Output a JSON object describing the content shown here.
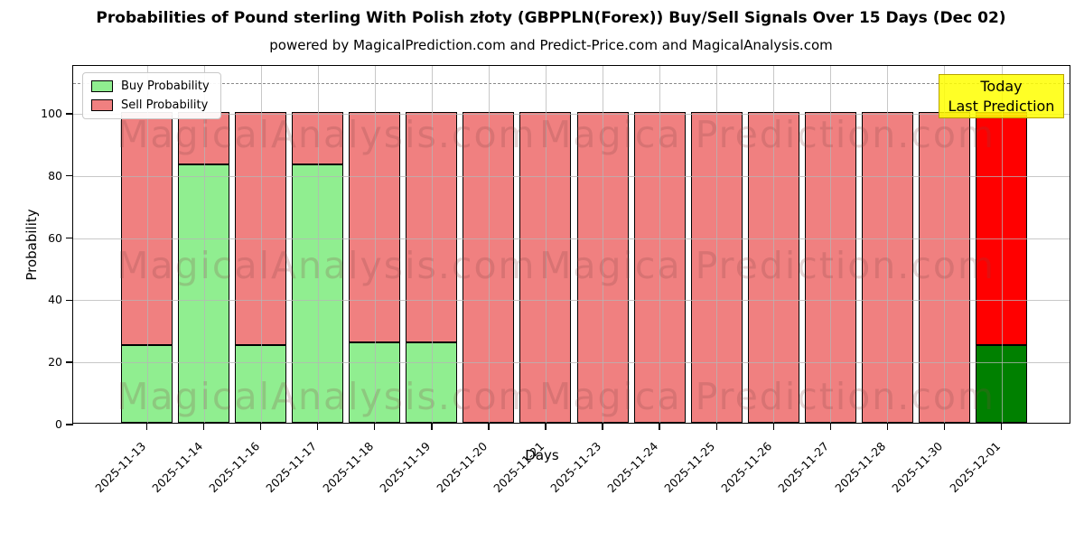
{
  "header": {
    "title": "Probabilities of Pound sterling With Polish złoty (GBPPLN(Forex)) Buy/Sell Signals Over 15 Days (Dec 02)",
    "subtitle": "powered by MagicalPrediction.com and Predict-Price.com and MagicalAnalysis.com"
  },
  "axes": {
    "x_label": "Days",
    "y_label": "Probability",
    "y_ticks": [
      0,
      20,
      40,
      60,
      80,
      100
    ]
  },
  "legend": {
    "items": [
      {
        "label": "Buy Probability",
        "color": "#90EE90"
      },
      {
        "label": "Sell Probability",
        "color": "#F08080"
      }
    ]
  },
  "annotation": {
    "line1": "Today",
    "line2": "Last Prediction",
    "bg_color": "#FFFF00"
  },
  "watermark": {
    "left_text": "MagicalAnalysis.com",
    "right_text": "Magica Prediction.com"
  },
  "chart_data": {
    "type": "bar",
    "stacked": true,
    "title": "Probabilities of Pound sterling With Polish złoty (GBPPLN(Forex)) Buy/Sell Signals Over 15 Days (Dec 02)",
    "xlabel": "Days",
    "ylabel": "Probability",
    "ylim": [
      0,
      115
    ],
    "grid": true,
    "legend_position": "upper left",
    "threshold_dashed_line_y": 110,
    "categories": [
      "2025-11-13",
      "2025-11-14",
      "2025-11-16",
      "2025-11-17",
      "2025-11-18",
      "2025-11-19",
      "2025-11-20",
      "2025-11-21",
      "2025-11-23",
      "2025-11-24",
      "2025-11-25",
      "2025-11-26",
      "2025-11-27",
      "2025-11-28",
      "2025-11-30",
      "2025-12-01"
    ],
    "series": [
      {
        "name": "Buy Probability",
        "color": "#90EE90",
        "today_color": "#008000",
        "values": [
          25,
          83,
          25,
          83,
          26,
          26,
          0,
          0,
          0,
          0,
          0,
          0,
          0,
          0,
          0,
          25
        ]
      },
      {
        "name": "Sell Probability",
        "color": "#F08080",
        "today_color": "#FF0000",
        "values": [
          75,
          17,
          75,
          17,
          74,
          74,
          100,
          100,
          100,
          100,
          100,
          100,
          100,
          100,
          100,
          75
        ]
      }
    ],
    "today_index": 15
  }
}
